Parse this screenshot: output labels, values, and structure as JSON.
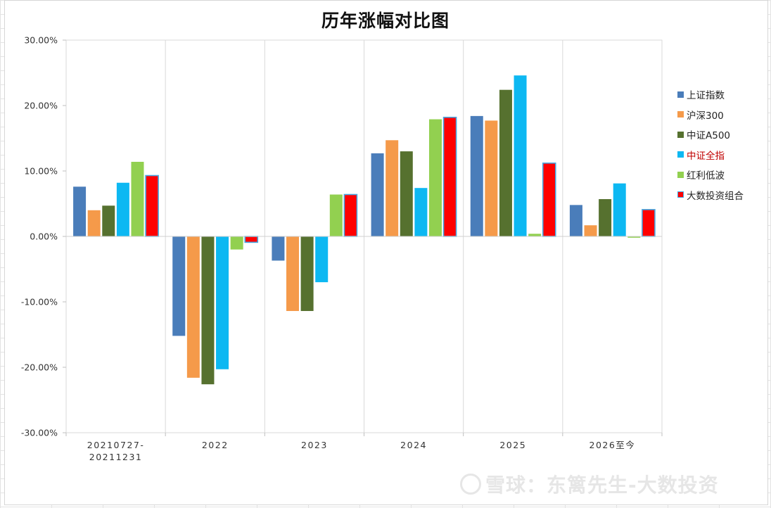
{
  "chart_data": {
    "type": "bar",
    "title": "历年涨幅对比图",
    "xlabel": "",
    "ylabel": "",
    "ylim": [
      -30,
      30
    ],
    "y_ticks": [
      "30.00%",
      "20.00%",
      "10.00%",
      "0.00%",
      "-10.00%",
      "-20.00%",
      "-30.00%"
    ],
    "y_tick_values": [
      30,
      20,
      10,
      0,
      -10,
      -20,
      -30
    ],
    "categories": [
      {
        "line1": "20210727-",
        "line2": "20211231"
      },
      {
        "line1": "2022",
        "line2": ""
      },
      {
        "line1": "2023",
        "line2": ""
      },
      {
        "line1": "2024",
        "line2": ""
      },
      {
        "line1": "2025",
        "line2": ""
      },
      {
        "line1": "2026至今",
        "line2": ""
      }
    ],
    "legend_position": "right",
    "series": [
      {
        "name": "上证指数",
        "color": "#4a7dba",
        "border": "",
        "values": [
          7.6,
          -15.2,
          -3.7,
          12.7,
          18.4,
          4.8
        ]
      },
      {
        "name": "沪深300",
        "color": "#f59a4a",
        "border": "",
        "values": [
          4.0,
          -21.6,
          -11.4,
          14.7,
          17.7,
          1.7
        ]
      },
      {
        "name": "中证A500",
        "color": "#56712f",
        "border": "",
        "values": [
          4.7,
          -22.6,
          -11.4,
          13.0,
          22.4,
          5.7
        ]
      },
      {
        "name": "中证全指",
        "color": "#0db8f2",
        "border": "",
        "values": [
          8.2,
          -20.3,
          -7.0,
          7.4,
          24.6,
          8.1
        ]
      },
      {
        "name": "红利低波",
        "color": "#92d050",
        "border": "",
        "values": [
          11.4,
          -2.0,
          6.4,
          17.9,
          0.4,
          -0.2
        ]
      },
      {
        "name": "大数投资组合",
        "color": "#ff0000",
        "border": "#46a7e0",
        "values": [
          9.3,
          -0.9,
          6.4,
          18.2,
          11.2,
          4.1
        ]
      }
    ]
  },
  "legend": {
    "highlight_color": "#c00000",
    "highlight_index": 3
  },
  "watermark": {
    "text": "雪球：东篱先生-大数投资"
  }
}
